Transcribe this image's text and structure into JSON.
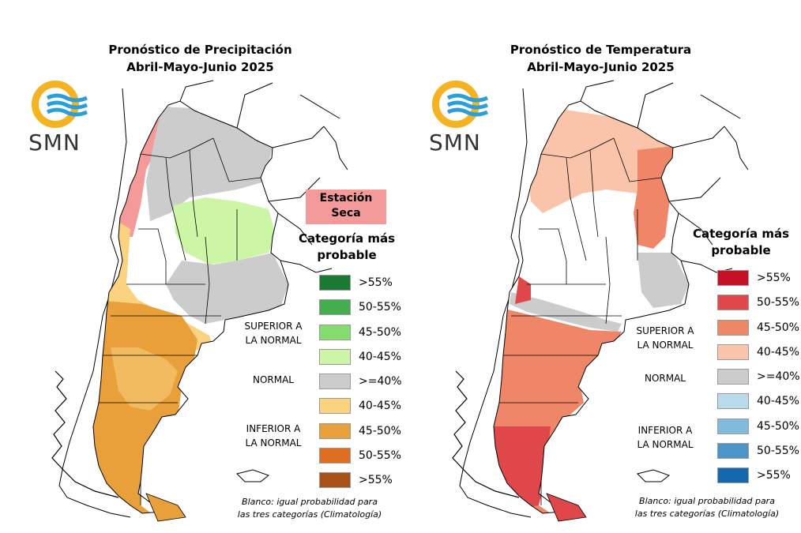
{
  "precipitation": {
    "title_line1": "Pronóstico de Precipitación",
    "title_line2": "Abril-Mayo-Junio 2025",
    "logo_text": "SMN",
    "dry_season_line1": "Estación",
    "dry_season_line2": "Seca",
    "category_title_line1": "Categoría más",
    "category_title_line2": "probable",
    "legend": [
      {
        "label": ">55%",
        "color": "#1a7a32"
      },
      {
        "label": "50-55%",
        "color": "#44ad4e"
      },
      {
        "label": "45-50%",
        "color": "#84dc6c"
      },
      {
        "label": "40-45%",
        "color": "#ccf5a6"
      },
      {
        "label": ">=40%",
        "color": "#cccccc"
      },
      {
        "label": "40-45%",
        "color": "#fbd27f"
      },
      {
        "label": "45-50%",
        "color": "#e9a03a"
      },
      {
        "label": "50-55%",
        "color": "#dd6e22"
      },
      {
        "label": ">55%",
        "color": "#a95219"
      }
    ],
    "group_upper_line1": "SUPERIOR A",
    "group_upper_line2": "LA NORMAL",
    "group_normal": "NORMAL",
    "group_lower_line1": "INFERIOR A",
    "group_lower_line2": "LA NORMAL",
    "note_line1": "Blanco: igual probabilidad para",
    "note_line2": "las tres categorías (Climatología)"
  },
  "temperature": {
    "title_line1": "Pronóstico de Temperatura",
    "title_line2": "Abril-Mayo-Junio 2025",
    "logo_text": "SMN",
    "category_title_line1": "Categoría más",
    "category_title_line2": "probable",
    "legend": [
      {
        "label": ">55%",
        "color": "#c90f26"
      },
      {
        "label": "50-55%",
        "color": "#e0474b"
      },
      {
        "label": "45-50%",
        "color": "#f08668"
      },
      {
        "label": "40-45%",
        "color": "#f9c4aa"
      },
      {
        "label": ">=40%",
        "color": "#cccccc"
      },
      {
        "label": "40-45%",
        "color": "#b9d9ec"
      },
      {
        "label": "45-50%",
        "color": "#82bbdd"
      },
      {
        "label": "50-55%",
        "color": "#4b95c9"
      },
      {
        "label": ">55%",
        "color": "#1468ae"
      }
    ],
    "group_upper_line1": "SUPERIOR A",
    "group_upper_line2": "LA NORMAL",
    "group_normal": "NORMAL",
    "group_lower_line1": "INFERIOR A",
    "group_lower_line2": "LA NORMAL",
    "note_line1": "Blanco: igual probabilidad para",
    "note_line2": "las tres categorías (Climatología)"
  },
  "colors": {
    "logo_ring": "#f5b324",
    "logo_waves": "#2a9fd8",
    "outline": "#000000"
  }
}
